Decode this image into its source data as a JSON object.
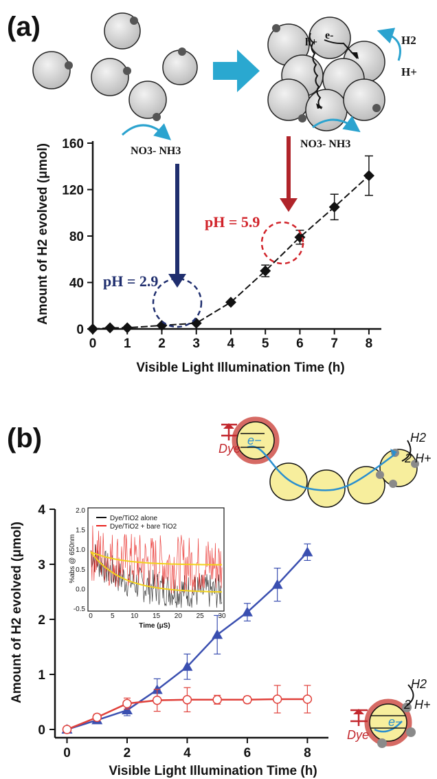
{
  "panel_a": {
    "label": "(a)",
    "chem_left": "NO3- NH3",
    "chem_right": "NO3- NH3",
    "h_label": "h+",
    "e_label": "e-",
    "h2": "H2",
    "hplus": "H+",
    "ph_low": "pH = 2.9",
    "ph_high": "pH = 5.9"
  },
  "panel_b": {
    "label": "(b)",
    "top_h2": "H2",
    "top_2h": "2 H+",
    "top_dye": "Dye",
    "top_e": "e−",
    "bot_h2": "H2",
    "bot_2h": "2 H+",
    "bot_dye": "Dye",
    "bot_e": "e−"
  },
  "chart_data": [
    {
      "type": "line",
      "xlabel": "Visible Light Illumination Time (h)",
      "ylabel": "Amount of H2 evolved (μmol)",
      "xlim": [
        0,
        8.3
      ],
      "ylim": [
        0,
        160
      ],
      "xticks": [
        0,
        1,
        2,
        3,
        4,
        5,
        6,
        7,
        8
      ],
      "yticks": [
        0,
        40,
        80,
        120,
        160
      ],
      "grid": false,
      "series": [
        {
          "x": [
            0,
            0.5,
            1,
            2,
            3,
            4,
            5,
            6,
            7,
            8
          ],
          "y": [
            0,
            1,
            1,
            3,
            5,
            23,
            50,
            79,
            105,
            132
          ],
          "err": [
            0,
            0,
            0,
            0,
            0,
            0,
            5,
            6,
            11,
            17
          ],
          "marker": "diamond",
          "color": "#111111"
        }
      ]
    },
    {
      "type": "line",
      "xlabel": "Visible Light Illumination Time (h)",
      "ylabel": "Amount of H2 evolved (μmol)",
      "xlim": [
        -0.4,
        8.7
      ],
      "ylim": [
        -0.15,
        4
      ],
      "xticks": [
        0,
        2,
        4,
        6,
        8
      ],
      "yticks": [
        0,
        1,
        2,
        3,
        4
      ],
      "grid": false,
      "series": [
        {
          "x": [
            0,
            1,
            2,
            3,
            4,
            5,
            6,
            7,
            8
          ],
          "y": [
            0,
            0.17,
            0.35,
            0.72,
            1.14,
            1.72,
            2.13,
            2.63,
            3.22
          ],
          "err": [
            0.05,
            0.06,
            0.1,
            0.2,
            0.23,
            0.35,
            0.16,
            0.3,
            0.15
          ],
          "marker": "triangle",
          "color": "#3a4fb0"
        },
        {
          "x": [
            0,
            1,
            2,
            3,
            4,
            5,
            6,
            7,
            8
          ],
          "y": [
            0,
            0.22,
            0.47,
            0.53,
            0.54,
            0.54,
            0.54,
            0.55,
            0.55
          ],
          "err": [
            0.05,
            0.06,
            0.1,
            0.2,
            0.22,
            0.08,
            0.06,
            0.25,
            0.25
          ],
          "marker": "circle-open",
          "color": "#e0403a"
        }
      ]
    },
    {
      "type": "line",
      "xlabel": "Time (μS)",
      "ylabel": "%abs @ 650nm",
      "xlim": [
        0,
        30
      ],
      "ylim": [
        -0.5,
        2.0
      ],
      "xticks": [
        0,
        5,
        10,
        15,
        20,
        25,
        30
      ],
      "yticks": [
        -0.5,
        0.0,
        0.5,
        1.0,
        1.5,
        2.0
      ],
      "legend": "top-right",
      "series": [
        {
          "name": "Dye/TiO2 alone",
          "color": "#111111",
          "fit_start": 0.95,
          "fit_end": -0.08
        },
        {
          "name": "Dye/TiO2 + bare TiO2",
          "color": "#e8201c",
          "fit_start": 0.95,
          "fit_end": 0.62
        }
      ]
    }
  ]
}
